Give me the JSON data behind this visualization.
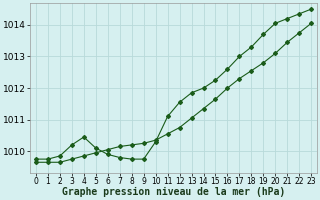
{
  "xlabel": "Graphe pression niveau de la mer (hPa)",
  "background_color": "#d6f0f0",
  "grid_color": "#b8dada",
  "line_color": "#1a5c1a",
  "ylim": [
    1009.3,
    1014.7
  ],
  "xlim": [
    -0.5,
    23.5
  ],
  "yticks": [
    1010,
    1011,
    1012,
    1013,
    1014
  ],
  "xticks": [
    0,
    1,
    2,
    3,
    4,
    5,
    6,
    7,
    8,
    9,
    10,
    11,
    12,
    13,
    14,
    15,
    16,
    17,
    18,
    19,
    20,
    21,
    22,
    23
  ],
  "line1_x": [
    0,
    1,
    2,
    3,
    4,
    5,
    6,
    7,
    8,
    9,
    10,
    11,
    12,
    13,
    14,
    15,
    16,
    17,
    18,
    19,
    20,
    21,
    22,
    23
  ],
  "line1_y": [
    1009.75,
    1009.75,
    1009.85,
    1010.2,
    1010.45,
    1010.1,
    1009.9,
    1009.8,
    1009.75,
    1009.75,
    1010.3,
    1011.1,
    1011.55,
    1011.85,
    1012.0,
    1012.25,
    1012.6,
    1013.0,
    1013.3,
    1013.7,
    1014.05,
    1014.2,
    1014.35,
    1014.5
  ],
  "line2_x": [
    0,
    1,
    2,
    3,
    4,
    5,
    6,
    7,
    8,
    9,
    10,
    11,
    12,
    13,
    14,
    15,
    16,
    17,
    18,
    19,
    20,
    21,
    22,
    23
  ],
  "line2_y": [
    1009.65,
    1009.65,
    1009.65,
    1009.75,
    1009.85,
    1009.95,
    1010.05,
    1010.15,
    1010.2,
    1010.25,
    1010.35,
    1010.55,
    1010.75,
    1011.05,
    1011.35,
    1011.65,
    1012.0,
    1012.3,
    1012.55,
    1012.8,
    1013.1,
    1013.45,
    1013.75,
    1014.05
  ],
  "marker_style": "D",
  "marker_size": 2.0,
  "line_width": 0.8,
  "xlabel_fontsize": 7,
  "ytick_fontsize": 6.5,
  "xtick_fontsize": 5.5
}
